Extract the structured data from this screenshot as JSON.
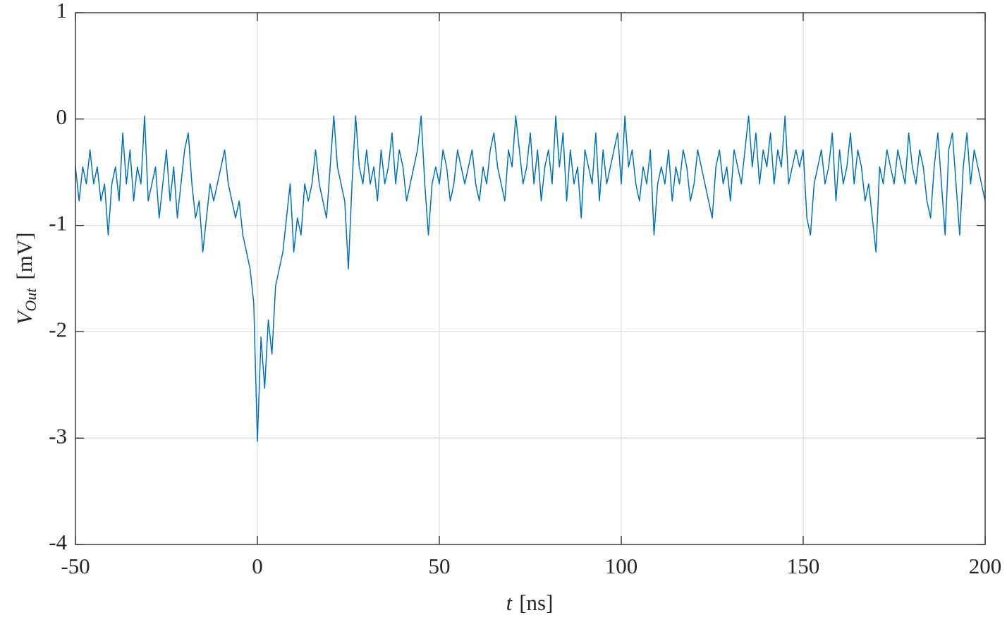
{
  "chart_data": {
    "type": "line",
    "xlabel": {
      "main": "t",
      "unit": "[ns]"
    },
    "ylabel": {
      "main": "V",
      "sub": "Out",
      "unit": "[mV]"
    },
    "x": [
      -50,
      -49,
      -48,
      -47,
      -46,
      -45,
      -44,
      -43,
      -42,
      -41,
      -40,
      -39,
      -38,
      -37,
      -36,
      -35,
      -34,
      -33,
      -32,
      -31,
      -30,
      -29,
      -28,
      -27,
      -26,
      -25,
      -24,
      -23,
      -22,
      -21,
      -20,
      -19,
      -18,
      -17,
      -16,
      -15,
      -14,
      -13,
      -12,
      -11,
      -10,
      -9,
      -8,
      -7,
      -6,
      -5,
      -4,
      -3,
      -2,
      -1,
      0,
      1,
      2,
      3,
      4,
      5,
      6,
      7,
      8,
      9,
      10,
      11,
      12,
      13,
      14,
      15,
      16,
      17,
      18,
      19,
      20,
      21,
      22,
      23,
      24,
      25,
      26,
      27,
      28,
      29,
      30,
      31,
      32,
      33,
      34,
      35,
      36,
      37,
      38,
      39,
      40,
      41,
      42,
      43,
      44,
      45,
      46,
      47,
      48,
      49,
      50,
      51,
      52,
      53,
      54,
      55,
      56,
      57,
      58,
      59,
      60,
      61,
      62,
      63,
      64,
      65,
      66,
      67,
      68,
      69,
      70,
      71,
      72,
      73,
      74,
      75,
      76,
      77,
      78,
      79,
      80,
      81,
      82,
      83,
      84,
      85,
      86,
      87,
      88,
      89,
      90,
      91,
      92,
      93,
      94,
      95,
      96,
      97,
      98,
      99,
      100,
      101,
      102,
      103,
      104,
      105,
      106,
      107,
      108,
      109,
      110,
      111,
      112,
      113,
      114,
      115,
      116,
      117,
      118,
      119,
      120,
      121,
      122,
      123,
      124,
      125,
      126,
      127,
      128,
      129,
      130,
      131,
      132,
      133,
      134,
      135,
      136,
      137,
      138,
      139,
      140,
      141,
      142,
      143,
      144,
      145,
      146,
      147,
      148,
      149,
      150,
      151,
      152,
      153,
      154,
      155,
      156,
      157,
      158,
      159,
      160,
      161,
      162,
      163,
      164,
      165,
      166,
      167,
      168,
      169,
      170,
      171,
      172,
      173,
      174,
      175,
      176,
      177,
      178,
      179,
      180,
      181,
      182,
      183,
      184,
      185,
      186,
      187,
      188,
      189,
      190,
      191,
      192,
      193,
      194,
      195,
      196,
      197,
      198,
      199,
      200
    ],
    "series": [
      {
        "color": "#0072bd",
        "values": [
          -0.45,
          -0.77,
          -0.45,
          -0.61,
          -0.29,
          -0.61,
          -0.45,
          -0.77,
          -0.61,
          -1.09,
          -0.61,
          -0.45,
          -0.77,
          -0.13,
          -0.61,
          -0.29,
          -0.77,
          -0.45,
          -0.61,
          0.03,
          -0.77,
          -0.61,
          -0.45,
          -0.93,
          -0.61,
          -0.29,
          -0.77,
          -0.45,
          -0.93,
          -0.61,
          -0.29,
          -0.13,
          -0.61,
          -0.93,
          -0.77,
          -1.25,
          -0.93,
          -0.61,
          -0.77,
          -0.61,
          -0.45,
          -0.29,
          -0.61,
          -0.77,
          -0.93,
          -0.77,
          -1.09,
          -1.25,
          -1.41,
          -1.73,
          -3.03,
          -2.05,
          -2.53,
          -1.89,
          -2.21,
          -1.57,
          -1.41,
          -1.25,
          -0.93,
          -0.61,
          -1.25,
          -0.93,
          -1.09,
          -0.61,
          -0.77,
          -0.61,
          -0.29,
          -0.61,
          -0.77,
          -0.93,
          -0.45,
          0.03,
          -0.45,
          -0.61,
          -0.77,
          -1.41,
          -0.61,
          0.03,
          -0.45,
          -0.61,
          -0.29,
          -0.61,
          -0.45,
          -0.77,
          -0.29,
          -0.61,
          -0.45,
          -0.13,
          -0.61,
          -0.29,
          -0.45,
          -0.77,
          -0.61,
          -0.45,
          -0.29,
          0.03,
          -0.61,
          -1.09,
          -0.61,
          -0.45,
          -0.61,
          -0.29,
          -0.45,
          -0.77,
          -0.61,
          -0.29,
          -0.45,
          -0.61,
          -0.45,
          -0.29,
          -0.61,
          -0.77,
          -0.45,
          -0.61,
          -0.29,
          -0.13,
          -0.45,
          -0.61,
          -0.77,
          -0.29,
          -0.45,
          0.03,
          -0.29,
          -0.61,
          -0.45,
          -0.13,
          -0.61,
          -0.29,
          -0.77,
          -0.45,
          -0.29,
          -0.61,
          0.03,
          -0.45,
          -0.13,
          -0.77,
          -0.29,
          -0.61,
          -0.45,
          -0.93,
          -0.29,
          -0.45,
          -0.61,
          -0.13,
          -0.77,
          -0.29,
          -0.61,
          -0.45,
          -0.29,
          -0.13,
          -0.61,
          0.03,
          -0.45,
          -0.29,
          -0.61,
          -0.77,
          -0.45,
          -0.61,
          -0.29,
          -1.09,
          -0.61,
          -0.45,
          -0.61,
          -0.29,
          -0.77,
          -0.45,
          -0.61,
          -0.29,
          -0.45,
          -0.77,
          -0.61,
          -0.29,
          -0.45,
          -0.61,
          -0.77,
          -0.93,
          -0.45,
          -0.29,
          -0.61,
          -0.45,
          -0.77,
          -0.29,
          -0.45,
          -0.61,
          -0.29,
          0.03,
          -0.45,
          -0.13,
          -0.61,
          -0.29,
          -0.45,
          -0.13,
          -0.61,
          -0.29,
          -0.45,
          0.03,
          -0.61,
          -0.45,
          -0.29,
          -0.45,
          -0.29,
          -0.93,
          -1.09,
          -0.61,
          -0.45,
          -0.29,
          -0.61,
          -0.45,
          -0.13,
          -0.77,
          -0.29,
          -0.61,
          -0.45,
          -0.13,
          -0.61,
          -0.29,
          -0.45,
          -0.77,
          -0.61,
          -0.93,
          -1.25,
          -0.45,
          -0.61,
          -0.29,
          -0.45,
          -0.61,
          -0.29,
          -0.45,
          -0.61,
          -0.13,
          -0.45,
          -0.61,
          -0.29,
          -0.45,
          -0.77,
          -0.93,
          -0.45,
          -0.13,
          -0.61,
          -1.09,
          -0.29,
          -0.13,
          -0.61,
          -1.09,
          -0.45,
          -0.13,
          -0.61,
          -0.29,
          -0.45,
          -0.61,
          -0.77
        ]
      }
    ],
    "xlim": [
      -50,
      200
    ],
    "xticks": [
      -50,
      0,
      50,
      100,
      150,
      200
    ],
    "ylim": [
      -4,
      1
    ],
    "yticks": [
      -4,
      -3,
      -2,
      -1,
      0,
      1
    ],
    "grid": true
  }
}
